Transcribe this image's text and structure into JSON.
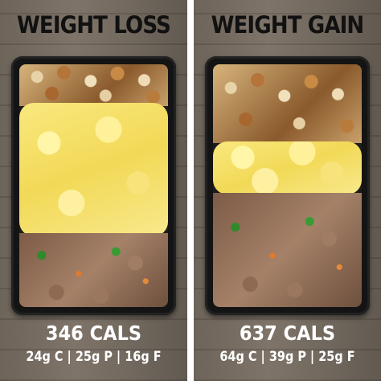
{
  "left": {
    "heading": "WEIGHT LOSS",
    "calories": "346 CALS",
    "macros": "24g C | 25g P | 16g F"
  },
  "right": {
    "heading": "WEIGHT GAIN",
    "calories": "637 CALS",
    "macros": "64g C | 39g P | 25g F"
  },
  "colors": {
    "heading_text": "#111111",
    "label_text": "#ffffff",
    "divider": "#ffffff",
    "egg": "#f6e26c",
    "tray": "#141414"
  }
}
